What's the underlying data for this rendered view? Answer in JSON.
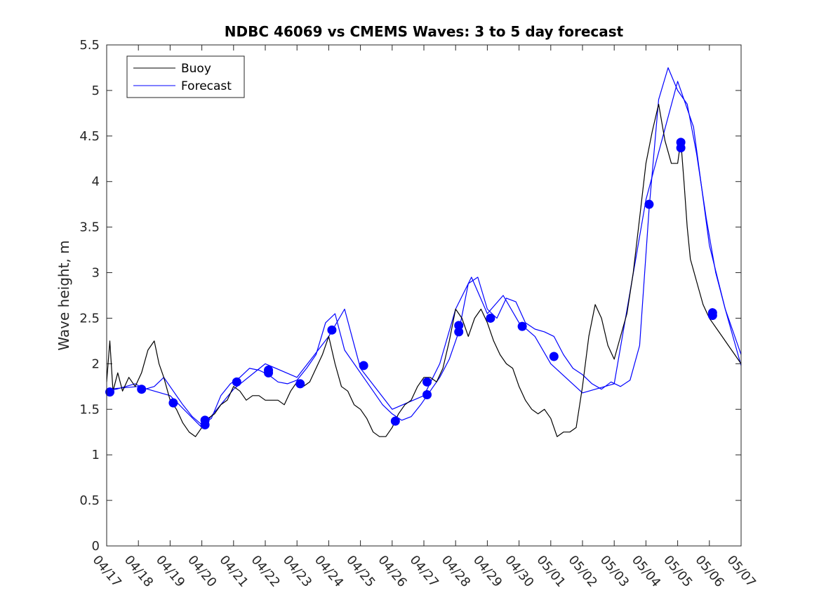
{
  "chart_data": {
    "type": "line",
    "title": "NDBC 46069 vs CMEMS Waves: 3 to 5 day forecast",
    "xlabel": "",
    "ylabel": "Wave height, m",
    "xlim": [
      "04/17",
      "05/07"
    ],
    "ylim": [
      0,
      5.5
    ],
    "yticks": [
      0,
      0.5,
      1,
      1.5,
      2,
      2.5,
      3,
      3.5,
      4,
      4.5,
      5,
      5.5
    ],
    "ytick_labels": [
      "0",
      "0.5",
      "1",
      "1.5",
      "2",
      "2.5",
      "3",
      "3.5",
      "4",
      "4.5",
      "5",
      "5.5"
    ],
    "xtick_labels": [
      "04/17",
      "04/18",
      "04/19",
      "04/20",
      "04/21",
      "04/22",
      "04/23",
      "04/24",
      "04/25",
      "04/26",
      "04/27",
      "04/28",
      "04/29",
      "04/30",
      "05/01",
      "05/02",
      "05/03",
      "05/04",
      "05/05",
      "05/06",
      "05/07"
    ],
    "grid": false,
    "legend_position": "top-left",
    "colors": {
      "buoy": "#000000",
      "forecast": "#0000ff"
    },
    "series": [
      {
        "name": "Buoy",
        "x": [
          0,
          0.1,
          0.2,
          0.35,
          0.5,
          0.7,
          0.9,
          1.1,
          1.3,
          1.5,
          1.65,
          1.8,
          2.0,
          2.2,
          2.4,
          2.6,
          2.8,
          3.0,
          3.2,
          3.4,
          3.6,
          3.8,
          4.0,
          4.2,
          4.4,
          4.6,
          4.8,
          5.0,
          5.2,
          5.4,
          5.6,
          5.8,
          6.0,
          6.2,
          6.4,
          6.6,
          6.8,
          7.0,
          7.2,
          7.4,
          7.6,
          7.8,
          8.0,
          8.2,
          8.4,
          8.6,
          8.8,
          9.0,
          9.2,
          9.4,
          9.6,
          9.8,
          10.0,
          10.2,
          10.4,
          10.6,
          10.8,
          11.0,
          11.2,
          11.4,
          11.6,
          11.8,
          12.0,
          12.2,
          12.4,
          12.6,
          12.8,
          13.0,
          13.2,
          13.4,
          13.6,
          13.8,
          14.0,
          14.2,
          14.4,
          14.6,
          14.8,
          15.0,
          15.2,
          15.4,
          15.6,
          15.8,
          16.0,
          16.2,
          16.4,
          16.6,
          16.8,
          17.0,
          17.2,
          17.4,
          17.6,
          17.8,
          18.0,
          18.1,
          18.2,
          18.3,
          18.4,
          18.6,
          18.8,
          19.0,
          19.2,
          19.4,
          19.6,
          19.8,
          20.0
        ],
        "values": [
          1.8,
          2.25,
          1.7,
          1.9,
          1.7,
          1.85,
          1.75,
          1.9,
          2.15,
          2.25,
          2.0,
          1.85,
          1.6,
          1.5,
          1.35,
          1.25,
          1.2,
          1.3,
          1.4,
          1.45,
          1.55,
          1.6,
          1.75,
          1.7,
          1.6,
          1.65,
          1.65,
          1.6,
          1.6,
          1.6,
          1.55,
          1.7,
          1.8,
          1.75,
          1.8,
          1.95,
          2.1,
          2.3,
          2.0,
          1.75,
          1.7,
          1.55,
          1.5,
          1.4,
          1.25,
          1.2,
          1.2,
          1.3,
          1.45,
          1.55,
          1.6,
          1.75,
          1.85,
          1.85,
          1.8,
          1.95,
          2.25,
          2.6,
          2.5,
          2.3,
          2.5,
          2.6,
          2.45,
          2.25,
          2.1,
          2.0,
          1.95,
          1.75,
          1.6,
          1.5,
          1.45,
          1.5,
          1.4,
          1.2,
          1.25,
          1.25,
          1.3,
          1.75,
          2.3,
          2.65,
          2.5,
          2.2,
          2.05,
          2.3,
          2.55,
          3.0,
          3.6,
          4.2,
          4.55,
          4.85,
          4.45,
          4.2,
          4.2,
          4.45,
          4.0,
          3.5,
          3.15,
          2.9,
          2.65,
          2.5,
          2.4,
          2.3,
          2.2,
          2.1,
          2.0
        ]
      },
      {
        "name": "Forecast",
        "x": [
          0,
          0.3,
          0.6,
          0.9,
          1.2,
          1.5,
          1.8,
          2.1,
          2.4,
          2.7,
          3.0,
          3.3,
          3.6,
          3.9,
          4.2,
          4.5,
          4.8,
          5.1,
          5.4,
          5.7,
          6.0,
          6.3,
          6.6,
          6.9,
          7.2,
          7.5,
          7.8,
          8.1,
          8.4,
          8.7,
          9.0,
          9.3,
          9.6,
          9.9,
          10.2,
          10.5,
          10.8,
          11.1,
          11.4,
          11.7,
          12.0,
          12.3,
          12.6,
          12.9,
          13.2,
          13.5,
          13.8,
          14.1,
          14.4,
          14.7,
          15.0,
          15.3,
          15.6,
          15.9,
          16.2,
          16.5,
          16.8,
          17.1,
          17.4,
          17.7,
          18.0,
          18.3,
          18.6,
          18.9,
          19.2,
          19.5,
          19.8,
          20.0
        ],
        "values": [
          1.7,
          1.72,
          1.75,
          1.78,
          1.72,
          1.75,
          1.85,
          1.7,
          1.55,
          1.42,
          1.33,
          1.4,
          1.65,
          1.78,
          1.85,
          1.95,
          1.93,
          1.88,
          1.8,
          1.78,
          1.82,
          1.95,
          2.1,
          2.45,
          2.55,
          2.15,
          2.0,
          1.85,
          1.7,
          1.55,
          1.45,
          1.38,
          1.42,
          1.55,
          1.7,
          1.85,
          2.05,
          2.35,
          2.88,
          2.95,
          2.6,
          2.5,
          2.72,
          2.68,
          2.45,
          2.38,
          2.35,
          2.3,
          2.1,
          1.95,
          1.88,
          1.78,
          1.72,
          1.8,
          1.75,
          1.82,
          2.2,
          3.7,
          4.9,
          5.25,
          5.0,
          4.85,
          4.3,
          3.6,
          3.0,
          2.6,
          2.3,
          2.1
        ]
      },
      {
        "name": "",
        "x": [
          0,
          1.0,
          2.0,
          3.0,
          4.0,
          5.0,
          6.0,
          7.0,
          7.5,
          8.0,
          9.0,
          10.0,
          10.5,
          11.0,
          11.5,
          12.0,
          12.5,
          13.0,
          13.5,
          14.0,
          15.0,
          16.0,
          17.0,
          18.0,
          18.5,
          19.0,
          19.5,
          20.0
        ],
        "values": [
          1.72,
          1.75,
          1.65,
          1.3,
          1.72,
          2.0,
          1.85,
          2.3,
          2.6,
          1.95,
          1.5,
          1.65,
          2.0,
          2.6,
          2.95,
          2.55,
          2.75,
          2.45,
          2.3,
          2.0,
          1.68,
          1.78,
          3.8,
          5.1,
          4.6,
          3.3,
          2.6,
          1.98
        ]
      }
    ],
    "markers": {
      "name": "",
      "x": [
        0.1,
        1.1,
        2.1,
        3.1,
        3.1,
        4.1,
        5.1,
        5.1,
        6.1,
        7.1,
        8.1,
        9.1,
        10.1,
        10.1,
        11.1,
        11.1,
        12.1,
        13.1,
        14.1,
        17.1,
        18.1,
        18.1,
        19.1,
        19.1
      ],
      "values": [
        1.69,
        1.72,
        1.57,
        1.33,
        1.38,
        1.8,
        1.9,
        1.93,
        1.78,
        2.37,
        1.98,
        1.37,
        1.66,
        1.8,
        2.35,
        2.42,
        2.5,
        2.41,
        2.08,
        3.75,
        4.37,
        4.43,
        2.53,
        2.56
      ]
    }
  }
}
